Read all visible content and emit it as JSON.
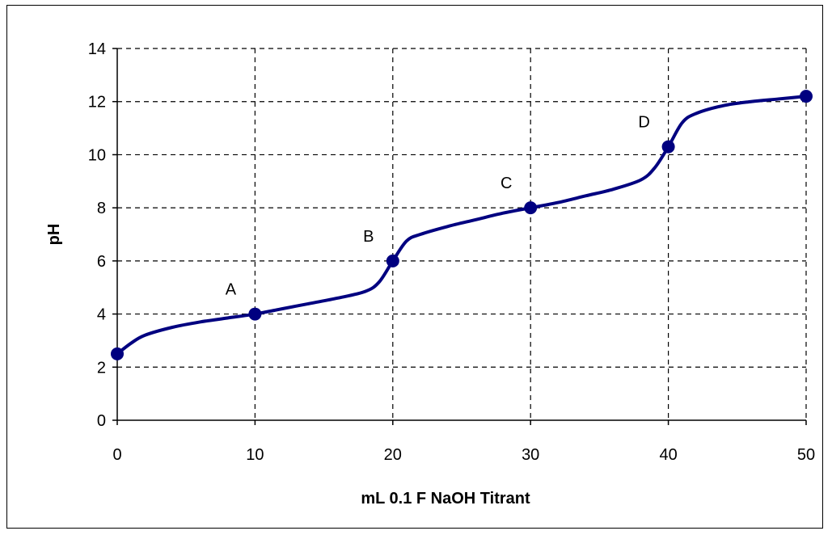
{
  "chart_data": {
    "type": "line",
    "title": "",
    "xlabel": "mL 0.1 F NaOH Titrant",
    "ylabel": "pH",
    "xlim": [
      0,
      50
    ],
    "ylim": [
      0,
      14
    ],
    "xticks": [
      0,
      10,
      20,
      30,
      40,
      50
    ],
    "yticks": [
      0,
      2,
      4,
      6,
      8,
      10,
      12,
      14
    ],
    "grid": true,
    "grid_style": "dashed",
    "legend": "none",
    "line_color": "#000080",
    "marker_color": "#000080",
    "series": [
      {
        "name": "",
        "x": [
          0,
          1,
          2,
          4,
          6,
          8,
          10,
          12,
          14,
          16,
          18,
          19,
          20,
          21,
          22,
          24,
          26,
          28,
          30,
          32,
          34,
          36,
          38,
          39,
          40,
          41,
          42,
          44,
          46,
          48,
          50
        ],
        "y": [
          2.5,
          2.9,
          3.2,
          3.5,
          3.7,
          3.85,
          4.0,
          4.2,
          4.4,
          4.6,
          4.85,
          5.2,
          6.0,
          6.75,
          7.0,
          7.3,
          7.55,
          7.8,
          8.0,
          8.2,
          8.45,
          8.7,
          9.05,
          9.5,
          10.3,
          11.2,
          11.55,
          11.85,
          12.0,
          12.1,
          12.2
        ]
      }
    ],
    "markers": [
      {
        "x": 0,
        "y": 2.5
      },
      {
        "x": 10,
        "y": 4.0
      },
      {
        "x": 20,
        "y": 6.0
      },
      {
        "x": 30,
        "y": 8.0
      },
      {
        "x": 40,
        "y": 10.3
      },
      {
        "x": 50,
        "y": 12.2
      }
    ],
    "annotations": [
      {
        "text": "A",
        "x": 10,
        "y": 4.0
      },
      {
        "text": "B",
        "x": 20,
        "y": 6.0
      },
      {
        "text": "C",
        "x": 30,
        "y": 8.0
      },
      {
        "text": "D",
        "x": 40,
        "y": 10.3
      }
    ]
  }
}
